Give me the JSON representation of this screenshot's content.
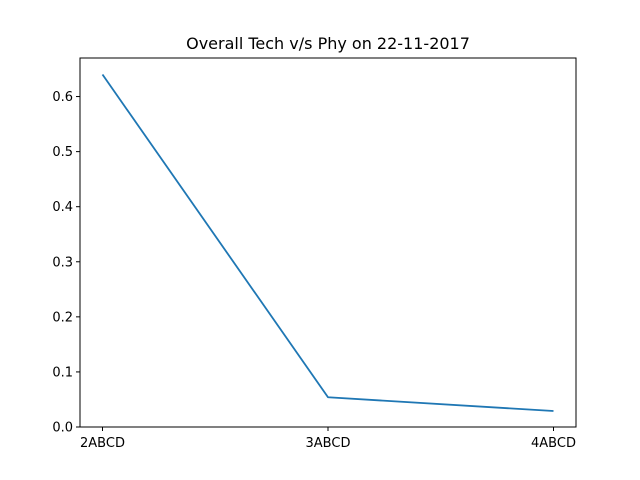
{
  "chart_data": {
    "type": "line",
    "title": "Overall Tech v/s Phy on 22-11-2017",
    "xlabel": "",
    "ylabel": "",
    "categories": [
      "2ABCD",
      "3ABCD",
      "4ABCD"
    ],
    "series": [
      {
        "values": [
          0.64,
          0.054,
          0.029
        ],
        "color": "#1f77b4"
      }
    ],
    "ylim": [
      0.0,
      0.67
    ],
    "yticks": [
      0.0,
      0.1,
      0.2,
      0.3,
      0.4,
      0.5,
      0.6
    ],
    "ytick_labels": [
      "0.0",
      "0.1",
      "0.2",
      "0.3",
      "0.4",
      "0.5",
      "0.6"
    ],
    "grid": false,
    "legend": "none"
  }
}
